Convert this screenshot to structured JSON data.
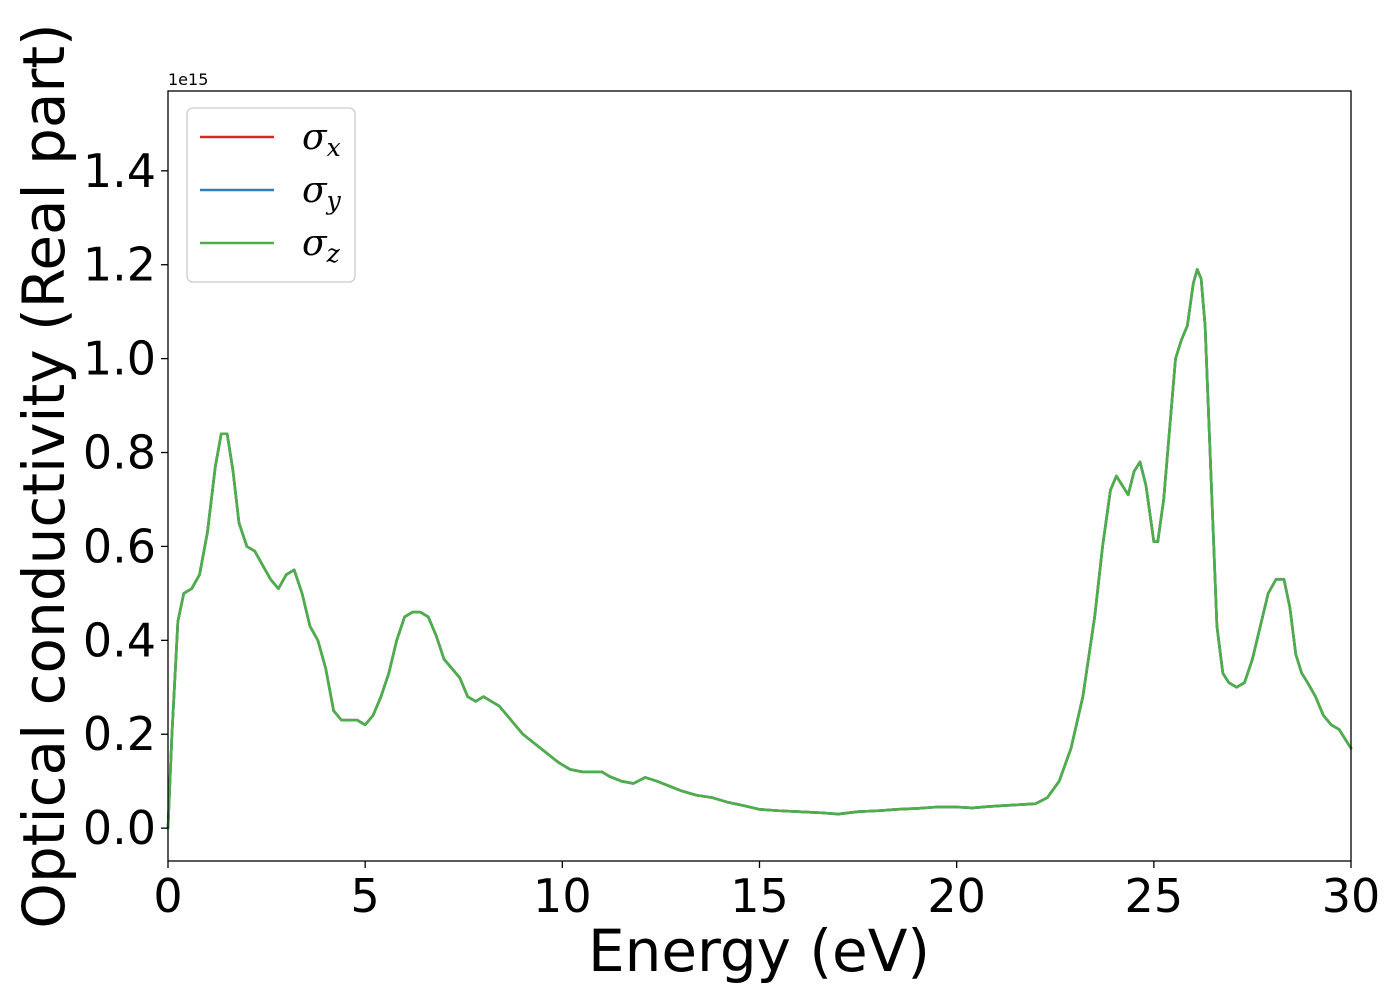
{
  "chart_data": {
    "type": "line",
    "title": "",
    "xlabel": "Energy (eV)",
    "ylabel": "Optical conductivity (Real part)",
    "y_offset_label": "1e15",
    "xlim": [
      0,
      30
    ],
    "ylim": [
      -0.07,
      1.57
    ],
    "xticks": [
      0,
      5,
      10,
      15,
      20,
      25,
      30
    ],
    "xtick_labels": [
      "0",
      "5",
      "10",
      "15",
      "20",
      "25",
      "30"
    ],
    "yticks": [
      0.0,
      0.2,
      0.4,
      0.6,
      0.8,
      1.0,
      1.2,
      1.4
    ],
    "ytick_labels": [
      "0.0",
      "0.2",
      "0.4",
      "0.6",
      "0.8",
      "1.0",
      "1.2",
      "1.4"
    ],
    "grid": false,
    "legend_position": "top-left",
    "series": [
      {
        "name": "σx",
        "symbol": "σ",
        "subscript": "x",
        "color": "#d62728",
        "x": [
          0,
          0.1,
          0.25,
          0.4,
          0.6,
          0.8,
          1.0,
          1.2,
          1.35,
          1.5,
          1.65,
          1.8,
          2.0,
          2.2,
          2.4,
          2.6,
          2.8,
          3.0,
          3.2,
          3.4,
          3.6,
          3.8,
          4.0,
          4.2,
          4.4,
          4.6,
          4.8,
          5.0,
          5.2,
          5.4,
          5.6,
          5.8,
          6.0,
          6.2,
          6.4,
          6.6,
          6.8,
          7.0,
          7.2,
          7.4,
          7.6,
          7.8,
          8.0,
          8.2,
          8.4,
          8.6,
          8.8,
          9.0,
          9.3,
          9.6,
          9.9,
          10.2,
          10.5,
          10.8,
          11.0,
          11.2,
          11.5,
          11.8,
          12.1,
          12.4,
          12.7,
          13.0,
          13.4,
          13.8,
          14.2,
          14.6,
          15.0,
          15.5,
          16.0,
          16.5,
          17.0,
          17.5,
          18.0,
          18.5,
          19.0,
          19.5,
          20.0,
          20.4,
          20.8,
          21.2,
          21.6,
          22.0,
          22.3,
          22.6,
          22.9,
          23.2,
          23.5,
          23.7,
          23.9,
          24.05,
          24.2,
          24.35,
          24.5,
          24.65,
          24.8,
          25.0,
          25.1,
          25.25,
          25.4,
          25.55,
          25.7,
          25.85,
          26.0,
          26.1,
          26.2,
          26.3,
          26.45,
          26.6,
          26.75,
          26.9,
          27.1,
          27.3,
          27.5,
          27.7,
          27.9,
          28.1,
          28.3,
          28.45,
          28.6,
          28.75,
          28.9,
          29.1,
          29.3,
          29.5,
          29.7,
          29.85,
          30.0
        ],
        "y": [
          0.0,
          0.2,
          0.44,
          0.5,
          0.51,
          0.54,
          0.63,
          0.77,
          0.84,
          0.84,
          0.76,
          0.65,
          0.6,
          0.59,
          0.56,
          0.53,
          0.51,
          0.54,
          0.55,
          0.5,
          0.43,
          0.4,
          0.34,
          0.25,
          0.23,
          0.23,
          0.23,
          0.22,
          0.24,
          0.28,
          0.33,
          0.4,
          0.45,
          0.46,
          0.46,
          0.45,
          0.41,
          0.36,
          0.34,
          0.32,
          0.28,
          0.27,
          0.28,
          0.27,
          0.26,
          0.24,
          0.22,
          0.2,
          0.18,
          0.16,
          0.14,
          0.125,
          0.12,
          0.12,
          0.12,
          0.11,
          0.1,
          0.095,
          0.108,
          0.1,
          0.09,
          0.08,
          0.07,
          0.065,
          0.055,
          0.048,
          0.04,
          0.037,
          0.035,
          0.033,
          0.03,
          0.035,
          0.037,
          0.04,
          0.042,
          0.045,
          0.045,
          0.043,
          0.046,
          0.048,
          0.05,
          0.052,
          0.065,
          0.1,
          0.17,
          0.28,
          0.45,
          0.6,
          0.72,
          0.75,
          0.73,
          0.71,
          0.76,
          0.78,
          0.73,
          0.61,
          0.61,
          0.7,
          0.85,
          1.0,
          1.04,
          1.07,
          1.16,
          1.19,
          1.17,
          1.07,
          0.75,
          0.43,
          0.33,
          0.31,
          0.3,
          0.31,
          0.36,
          0.43,
          0.5,
          0.53,
          0.53,
          0.47,
          0.37,
          0.33,
          0.31,
          0.28,
          0.24,
          0.22,
          0.21,
          0.19,
          0.17
        ]
      },
      {
        "name": "σy",
        "symbol": "σ",
        "subscript": "y",
        "color": "#377eb8",
        "x": [
          0,
          0.1,
          0.25,
          0.4,
          0.6,
          0.8,
          1.0,
          1.2,
          1.35,
          1.5,
          1.65,
          1.8,
          2.0,
          2.2,
          2.4,
          2.6,
          2.8,
          3.0,
          3.2,
          3.4,
          3.6,
          3.8,
          4.0,
          4.2,
          4.4,
          4.6,
          4.8,
          5.0,
          5.2,
          5.4,
          5.6,
          5.8,
          6.0,
          6.2,
          6.4,
          6.6,
          6.8,
          7.0,
          7.2,
          7.4,
          7.6,
          7.8,
          8.0,
          8.2,
          8.4,
          8.6,
          8.8,
          9.0,
          9.3,
          9.6,
          9.9,
          10.2,
          10.5,
          10.8,
          11.0,
          11.2,
          11.5,
          11.8,
          12.1,
          12.4,
          12.7,
          13.0,
          13.4,
          13.8,
          14.2,
          14.6,
          15.0,
          15.5,
          16.0,
          16.5,
          17.0,
          17.5,
          18.0,
          18.5,
          19.0,
          19.5,
          20.0,
          20.4,
          20.8,
          21.2,
          21.6,
          22.0,
          22.3,
          22.6,
          22.9,
          23.2,
          23.5,
          23.7,
          23.9,
          24.05,
          24.2,
          24.35,
          24.5,
          24.65,
          24.8,
          25.0,
          25.1,
          25.25,
          25.4,
          25.55,
          25.7,
          25.85,
          26.0,
          26.1,
          26.2,
          26.3,
          26.45,
          26.6,
          26.75,
          26.9,
          27.1,
          27.3,
          27.5,
          27.7,
          27.9,
          28.1,
          28.3,
          28.45,
          28.6,
          28.75,
          28.9,
          29.1,
          29.3,
          29.5,
          29.7,
          29.85,
          30.0
        ],
        "y": [
          0.0,
          0.2,
          0.44,
          0.5,
          0.51,
          0.54,
          0.63,
          0.77,
          0.84,
          0.84,
          0.76,
          0.65,
          0.6,
          0.59,
          0.56,
          0.53,
          0.51,
          0.54,
          0.55,
          0.5,
          0.43,
          0.4,
          0.34,
          0.25,
          0.23,
          0.23,
          0.23,
          0.22,
          0.24,
          0.28,
          0.33,
          0.4,
          0.45,
          0.46,
          0.46,
          0.45,
          0.41,
          0.36,
          0.34,
          0.32,
          0.28,
          0.27,
          0.28,
          0.27,
          0.26,
          0.24,
          0.22,
          0.2,
          0.18,
          0.16,
          0.14,
          0.125,
          0.12,
          0.12,
          0.12,
          0.11,
          0.1,
          0.095,
          0.108,
          0.1,
          0.09,
          0.08,
          0.07,
          0.065,
          0.055,
          0.048,
          0.04,
          0.037,
          0.035,
          0.033,
          0.03,
          0.035,
          0.037,
          0.04,
          0.042,
          0.045,
          0.045,
          0.043,
          0.046,
          0.048,
          0.05,
          0.052,
          0.065,
          0.1,
          0.17,
          0.28,
          0.45,
          0.6,
          0.72,
          0.75,
          0.73,
          0.71,
          0.76,
          0.78,
          0.73,
          0.61,
          0.61,
          0.7,
          0.85,
          1.0,
          1.04,
          1.07,
          1.16,
          1.19,
          1.17,
          1.07,
          0.75,
          0.43,
          0.33,
          0.31,
          0.3,
          0.31,
          0.36,
          0.43,
          0.5,
          0.53,
          0.53,
          0.47,
          0.37,
          0.33,
          0.31,
          0.28,
          0.24,
          0.22,
          0.21,
          0.19,
          0.17
        ]
      },
      {
        "name": "σz",
        "symbol": "σ",
        "subscript": "z",
        "color": "#4daf4a",
        "x": [
          0,
          0.1,
          0.25,
          0.4,
          0.6,
          0.8,
          1.0,
          1.2,
          1.35,
          1.5,
          1.65,
          1.8,
          2.0,
          2.2,
          2.4,
          2.6,
          2.8,
          3.0,
          3.2,
          3.4,
          3.6,
          3.8,
          4.0,
          4.2,
          4.4,
          4.6,
          4.8,
          5.0,
          5.2,
          5.4,
          5.6,
          5.8,
          6.0,
          6.2,
          6.4,
          6.6,
          6.8,
          7.0,
          7.2,
          7.4,
          7.6,
          7.8,
          8.0,
          8.2,
          8.4,
          8.6,
          8.8,
          9.0,
          9.3,
          9.6,
          9.9,
          10.2,
          10.5,
          10.8,
          11.0,
          11.2,
          11.5,
          11.8,
          12.1,
          12.4,
          12.7,
          13.0,
          13.4,
          13.8,
          14.2,
          14.6,
          15.0,
          15.5,
          16.0,
          16.5,
          17.0,
          17.5,
          18.0,
          18.5,
          19.0,
          19.5,
          20.0,
          20.4,
          20.8,
          21.2,
          21.6,
          22.0,
          22.3,
          22.6,
          22.9,
          23.2,
          23.5,
          23.7,
          23.9,
          24.05,
          24.2,
          24.35,
          24.5,
          24.65,
          24.8,
          25.0,
          25.1,
          25.25,
          25.4,
          25.55,
          25.7,
          25.85,
          26.0,
          26.1,
          26.2,
          26.3,
          26.45,
          26.6,
          26.75,
          26.9,
          27.1,
          27.3,
          27.5,
          27.7,
          27.9,
          28.1,
          28.3,
          28.45,
          28.6,
          28.75,
          28.9,
          29.1,
          29.3,
          29.5,
          29.7,
          29.85,
          30.0
        ],
        "y": [
          0.0,
          0.2,
          0.44,
          0.5,
          0.51,
          0.54,
          0.63,
          0.77,
          0.84,
          0.84,
          0.76,
          0.65,
          0.6,
          0.59,
          0.56,
          0.53,
          0.51,
          0.54,
          0.55,
          0.5,
          0.43,
          0.4,
          0.34,
          0.25,
          0.23,
          0.23,
          0.23,
          0.22,
          0.24,
          0.28,
          0.33,
          0.4,
          0.45,
          0.46,
          0.46,
          0.45,
          0.41,
          0.36,
          0.34,
          0.32,
          0.28,
          0.27,
          0.28,
          0.27,
          0.26,
          0.24,
          0.22,
          0.2,
          0.18,
          0.16,
          0.14,
          0.125,
          0.12,
          0.12,
          0.12,
          0.11,
          0.1,
          0.095,
          0.108,
          0.1,
          0.09,
          0.08,
          0.07,
          0.065,
          0.055,
          0.048,
          0.04,
          0.037,
          0.035,
          0.033,
          0.03,
          0.035,
          0.037,
          0.04,
          0.042,
          0.045,
          0.045,
          0.043,
          0.046,
          0.048,
          0.05,
          0.052,
          0.065,
          0.1,
          0.17,
          0.28,
          0.45,
          0.6,
          0.72,
          0.75,
          0.73,
          0.71,
          0.76,
          0.78,
          0.73,
          0.61,
          0.61,
          0.7,
          0.85,
          1.0,
          1.04,
          1.07,
          1.16,
          1.19,
          1.17,
          1.07,
          0.75,
          0.43,
          0.33,
          0.31,
          0.3,
          0.31,
          0.36,
          0.43,
          0.5,
          0.53,
          0.53,
          0.47,
          0.37,
          0.33,
          0.31,
          0.28,
          0.24,
          0.22,
          0.21,
          0.19,
          0.17
        ]
      }
    ]
  }
}
